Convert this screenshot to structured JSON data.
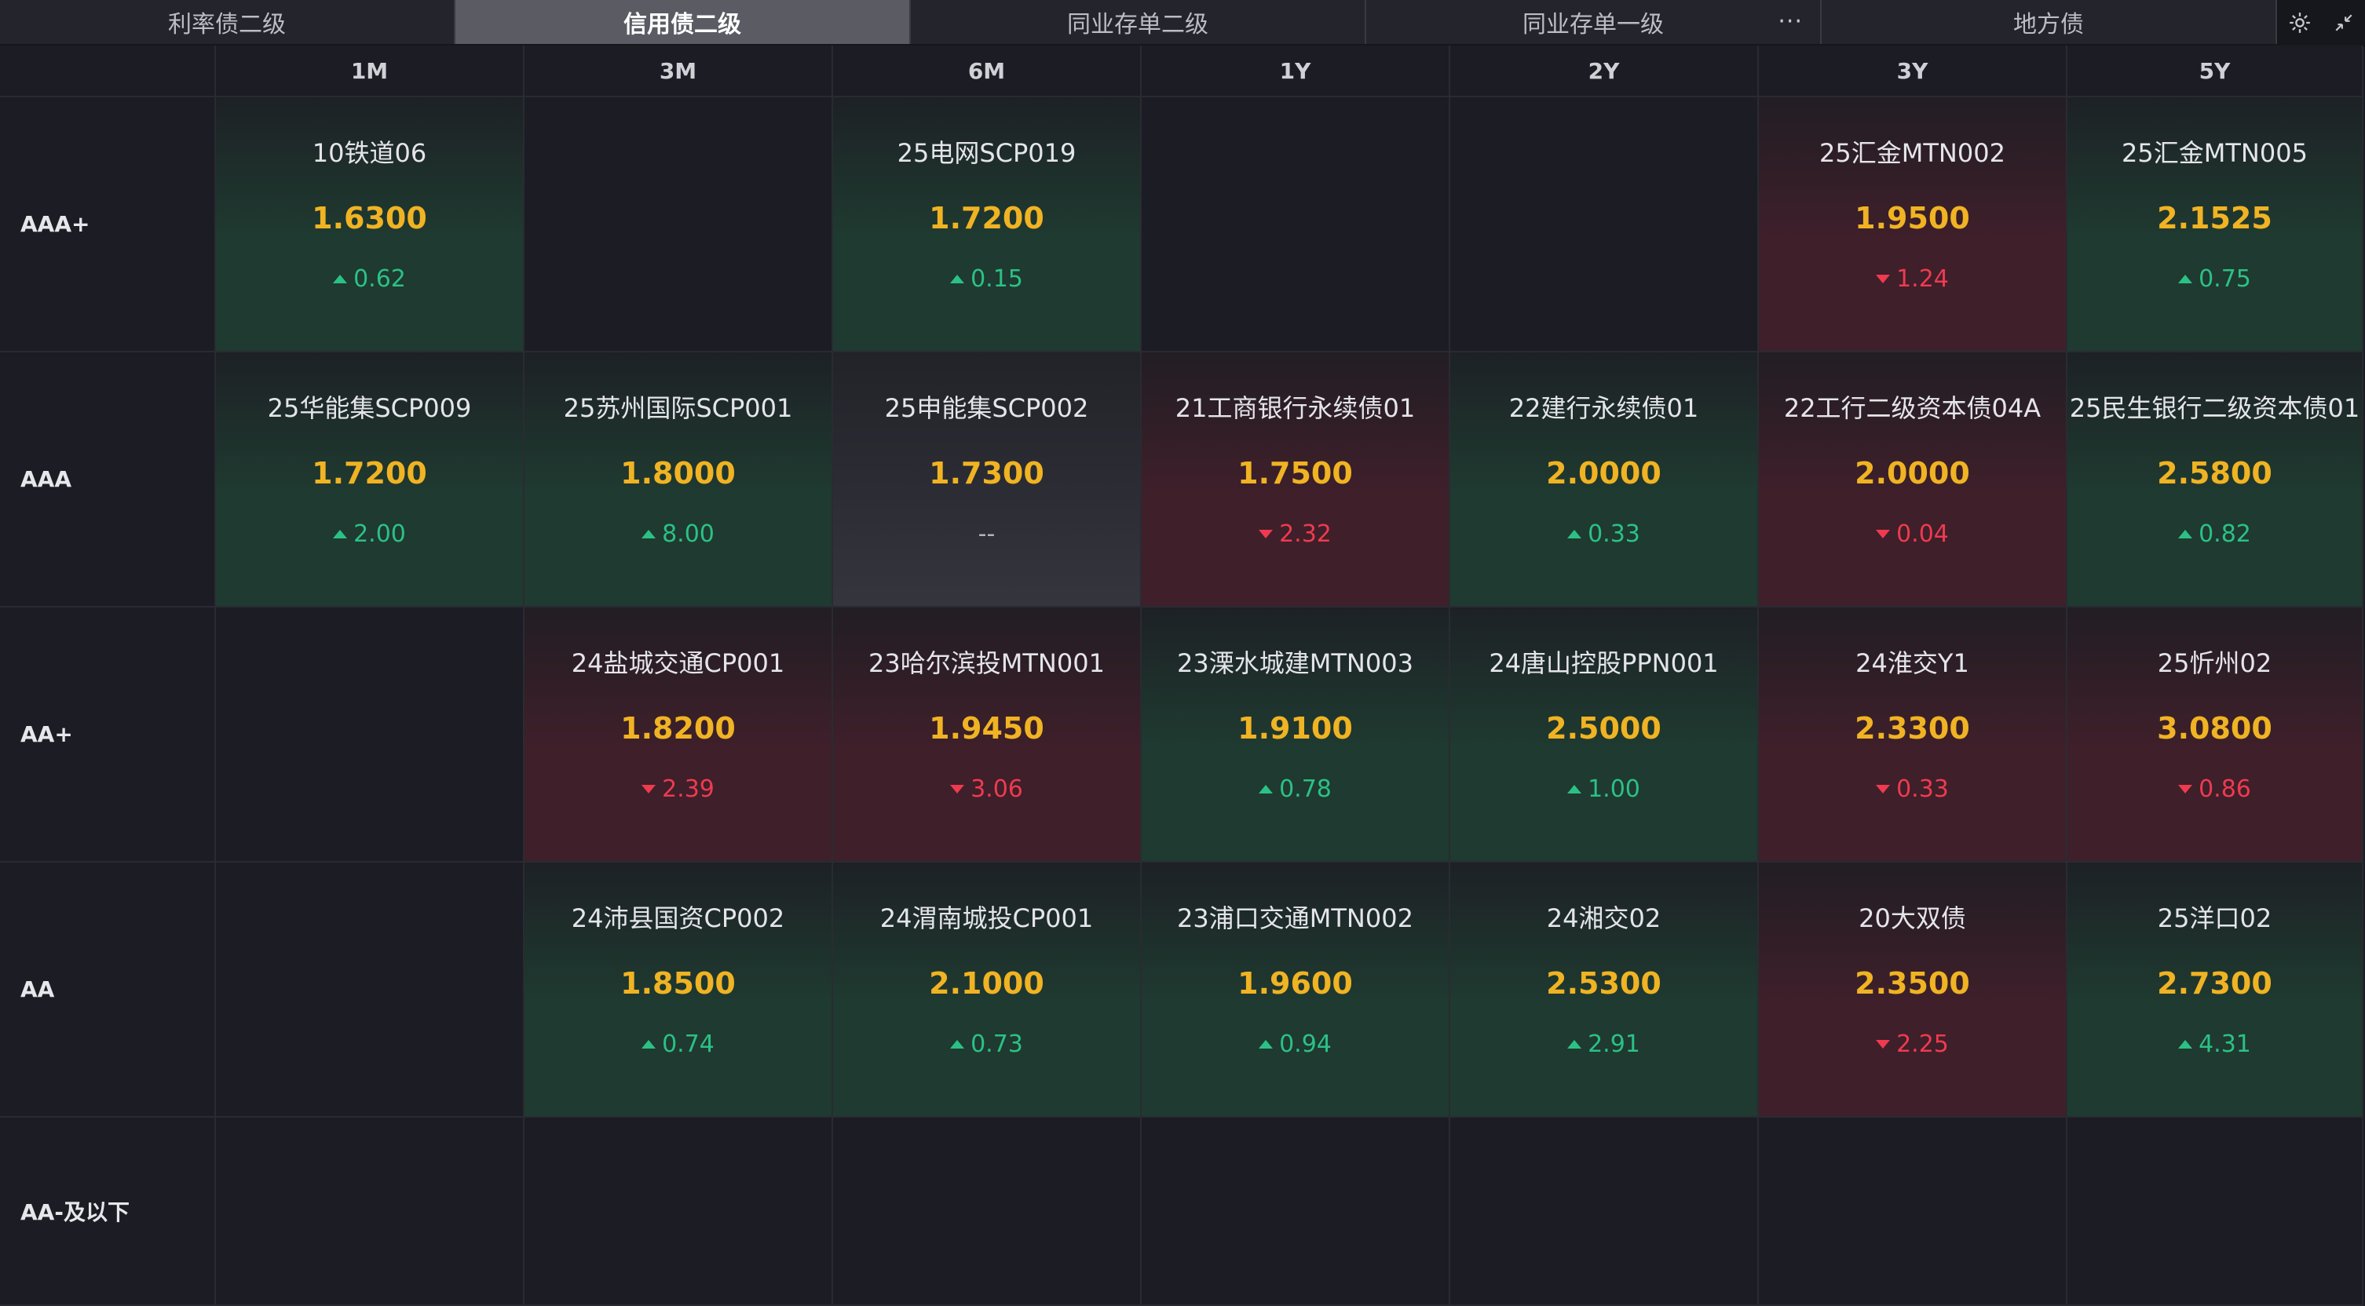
{
  "tabs": [
    {
      "label": "利率债二级",
      "active": false
    },
    {
      "label": "信用债二级",
      "active": true
    },
    {
      "label": "同业存单二级",
      "active": false
    },
    {
      "label": "同业存单一级",
      "active": false,
      "more": "···"
    },
    {
      "label": "地方债",
      "active": false
    }
  ],
  "columns": [
    "1M",
    "3M",
    "6M",
    "1Y",
    "2Y",
    "3Y",
    "5Y"
  ],
  "rows": [
    {
      "label": "AAA+",
      "cells": [
        {
          "name": "10铁道06",
          "yield": "1.6300",
          "change": "0.62",
          "dir": "up",
          "tone": "green"
        },
        null,
        {
          "name": "25电网SCP019",
          "yield": "1.7200",
          "change": "0.15",
          "dir": "up",
          "tone": "green"
        },
        null,
        null,
        {
          "name": "25汇金MTN002",
          "yield": "1.9500",
          "change": "1.24",
          "dir": "down",
          "tone": "red"
        },
        {
          "name": "25汇金MTN005",
          "yield": "2.1525",
          "change": "0.75",
          "dir": "up",
          "tone": "green"
        }
      ]
    },
    {
      "label": "AAA",
      "cells": [
        {
          "name": "25华能集SCP009",
          "yield": "1.7200",
          "change": "2.00",
          "dir": "up",
          "tone": "green"
        },
        {
          "name": "25苏州国际SCP001",
          "yield": "1.8000",
          "change": "8.00",
          "dir": "up",
          "tone": "green"
        },
        {
          "name": "25申能集SCP002",
          "yield": "1.7300",
          "change": "--",
          "dir": "none",
          "tone": "gray"
        },
        {
          "name": "21工商银行永续债01",
          "yield": "1.7500",
          "change": "2.32",
          "dir": "down",
          "tone": "red"
        },
        {
          "name": "22建行永续债01",
          "yield": "2.0000",
          "change": "0.33",
          "dir": "up",
          "tone": "green"
        },
        {
          "name": "22工行二级资本债04A",
          "yield": "2.0000",
          "change": "0.04",
          "dir": "down",
          "tone": "red"
        },
        {
          "name": "25民生银行二级资本债01",
          "yield": "2.5800",
          "change": "0.82",
          "dir": "up",
          "tone": "green"
        }
      ]
    },
    {
      "label": "AA+",
      "cells": [
        null,
        {
          "name": "24盐城交通CP001",
          "yield": "1.8200",
          "change": "2.39",
          "dir": "down",
          "tone": "red"
        },
        {
          "name": "23哈尔滨投MTN001",
          "yield": "1.9450",
          "change": "3.06",
          "dir": "down",
          "tone": "red"
        },
        {
          "name": "23溧水城建MTN003",
          "yield": "1.9100",
          "change": "0.78",
          "dir": "up",
          "tone": "green"
        },
        {
          "name": "24唐山控股PPN001",
          "yield": "2.5000",
          "change": "1.00",
          "dir": "up",
          "tone": "green"
        },
        {
          "name": "24淮交Y1",
          "yield": "2.3300",
          "change": "0.33",
          "dir": "down",
          "tone": "red"
        },
        {
          "name": "25忻州02",
          "yield": "3.0800",
          "change": "0.86",
          "dir": "down",
          "tone": "red"
        }
      ]
    },
    {
      "label": "AA",
      "cells": [
        null,
        {
          "name": "24沛县国资CP002",
          "yield": "1.8500",
          "change": "0.74",
          "dir": "up",
          "tone": "green"
        },
        {
          "name": "24渭南城投CP001",
          "yield": "2.1000",
          "change": "0.73",
          "dir": "up",
          "tone": "green"
        },
        {
          "name": "23浦口交通MTN002",
          "yield": "1.9600",
          "change": "0.94",
          "dir": "up",
          "tone": "green"
        },
        {
          "name": "24湘交02",
          "yield": "2.5300",
          "change": "2.91",
          "dir": "up",
          "tone": "green"
        },
        {
          "name": "20大双债",
          "yield": "2.3500",
          "change": "2.25",
          "dir": "down",
          "tone": "red"
        },
        {
          "name": "25洋口02",
          "yield": "2.7300",
          "change": "4.31",
          "dir": "up",
          "tone": "green"
        }
      ]
    },
    {
      "label": "AA-及以下",
      "cells": [
        null,
        null,
        null,
        null,
        null,
        null,
        null
      ]
    }
  ],
  "icons": {
    "settings": "gear-icon",
    "collapse": "shrink-icon"
  },
  "colors": {
    "yield": "#f0b323",
    "up": "#2bc186",
    "down": "#ef3a4f",
    "active_tab": "#5a5b63"
  }
}
